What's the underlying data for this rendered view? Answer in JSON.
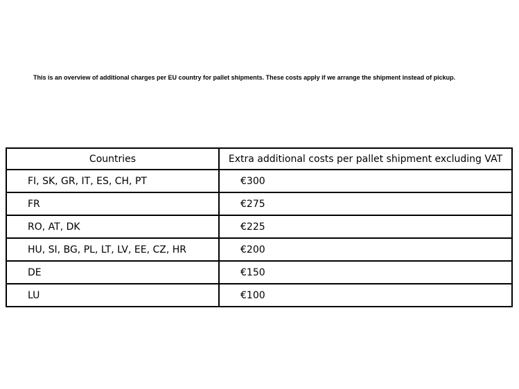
{
  "page": {
    "background_color": "#ffffff",
    "text_color": "#000000",
    "intro": "This is an overview of additional charges per EU country for pallet shipments. These costs apply if we arrange the shipment instead of pickup."
  },
  "table": {
    "border_color": "#000000",
    "headers": [
      "Countries",
      "Extra additional costs per pallet shipment excluding VAT"
    ],
    "rows": [
      {
        "countries": "FI, SK, GR, IT, ES, CH, PT",
        "cost": "€300"
      },
      {
        "countries": "FR",
        "cost": "€275"
      },
      {
        "countries": "RO, AT, DK",
        "cost": "€225"
      },
      {
        "countries": "HU, SI, BG, PL, LT, LV, EE, CZ, HR",
        "cost": "€200"
      },
      {
        "countries": "DE",
        "cost": "€150"
      },
      {
        "countries": "LU",
        "cost": "€100"
      }
    ]
  }
}
